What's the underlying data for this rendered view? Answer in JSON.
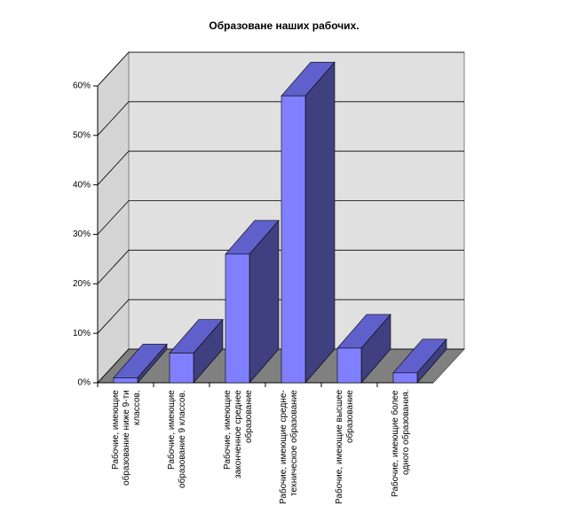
{
  "chart_data": {
    "type": "bar3d",
    "title": "Образоване наших рабочих.",
    "categories": [
      "Рабочие, имеющие образование ниже 9-ти классов.",
      "Рабочие, имеющие образование 9 классов.",
      "Рабочие, имеющие законченное среднее образование",
      "Рабочие, имеющие средне-техническое образование",
      "Рабочие, имеющие высшее образование",
      "Рабочие, имеющие более одного образования."
    ],
    "values": [
      1,
      6,
      26,
      58,
      7,
      2
    ],
    "color": "#8080ff",
    "ylim": [
      0,
      60
    ],
    "yticks": [
      {
        "value": 0,
        "label": "0%"
      },
      {
        "value": 10,
        "label": "10%"
      },
      {
        "value": 20,
        "label": "20%"
      },
      {
        "value": 30,
        "label": "30%"
      },
      {
        "value": 40,
        "label": "40%"
      },
      {
        "value": 50,
        "label": "50%"
      },
      {
        "value": 60,
        "label": "60%"
      }
    ],
    "grid": true
  }
}
